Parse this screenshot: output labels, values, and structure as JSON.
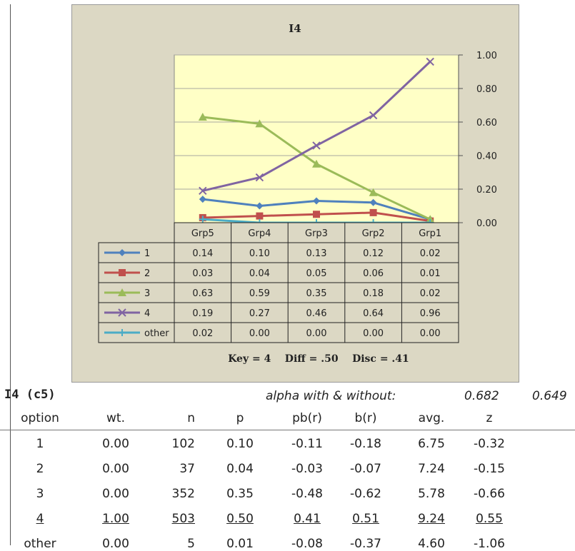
{
  "chart_data": {
    "type": "line",
    "title": "I4",
    "categories": [
      "Grp5",
      "Grp4",
      "Grp3",
      "Grp2",
      "Grp1"
    ],
    "ylim": [
      0,
      1
    ],
    "yticks": [
      "0.00",
      "0.20",
      "0.40",
      "0.60",
      "0.80",
      "1.00"
    ],
    "grid": true,
    "legend": "data-table-below",
    "series": [
      {
        "name": "1",
        "color": "#4f81bd",
        "marker": "diamond",
        "values": [
          0.14,
          0.1,
          0.13,
          0.12,
          0.02
        ],
        "labels": [
          "0.14",
          "0.10",
          "0.13",
          "0.12",
          "0.02"
        ]
      },
      {
        "name": "2",
        "color": "#c0504d",
        "marker": "square",
        "values": [
          0.03,
          0.04,
          0.05,
          0.06,
          0.01
        ],
        "labels": [
          "0.03",
          "0.04",
          "0.05",
          "0.06",
          "0.01"
        ]
      },
      {
        "name": "3",
        "color": "#9bbb59",
        "marker": "triangle",
        "values": [
          0.63,
          0.59,
          0.35,
          0.18,
          0.02
        ],
        "labels": [
          "0.63",
          "0.59",
          "0.35",
          "0.18",
          "0.02"
        ]
      },
      {
        "name": "4",
        "color": "#8064a2",
        "marker": "x",
        "values": [
          0.19,
          0.27,
          0.46,
          0.64,
          0.96
        ],
        "labels": [
          "0.19",
          "0.27",
          "0.46",
          "0.64",
          "0.96"
        ]
      },
      {
        "name": "other",
        "color": "#4bacc6",
        "marker": "star",
        "values": [
          0.02,
          0.0,
          0.0,
          0.0,
          0.0
        ],
        "labels": [
          "0.02",
          "0.00",
          "0.00",
          "0.00",
          "0.00"
        ]
      }
    ],
    "footer": "Key = 4    Diff = .50    Disc = .41"
  },
  "stats": {
    "title": "I4 (c5)",
    "alpha_label": "alpha with & without:",
    "alpha_with": "0.682",
    "alpha_without": "0.649",
    "headers": [
      "option",
      "wt.",
      "n",
      "p",
      "pb(r)",
      "b(r)",
      "avg.",
      "z"
    ],
    "rows": [
      {
        "option": "1",
        "wt": "0.00",
        "n": "102",
        "p": "0.10",
        "pbr": "-0.11",
        "br": "-0.18",
        "avg": "6.75",
        "z": "-0.32",
        "key": false
      },
      {
        "option": "2",
        "wt": "0.00",
        "n": "37",
        "p": "0.04",
        "pbr": "-0.03",
        "br": "-0.07",
        "avg": "7.24",
        "z": "-0.15",
        "key": false
      },
      {
        "option": "3",
        "wt": "0.00",
        "n": "352",
        "p": "0.35",
        "pbr": "-0.48",
        "br": "-0.62",
        "avg": "5.78",
        "z": "-0.66",
        "key": false
      },
      {
        "option": "4",
        "wt": "1.00",
        "n": "503",
        "p": "0.50",
        "pbr": "0.41",
        "br": "0.51",
        "avg": "9.24",
        "z": "0.55",
        "key": true
      },
      {
        "option": "other",
        "wt": "0.00",
        "n": "5",
        "p": "0.01",
        "pbr": "-0.08",
        "br": "-0.37",
        "avg": "4.60",
        "z": "-1.06",
        "key": false
      }
    ]
  }
}
